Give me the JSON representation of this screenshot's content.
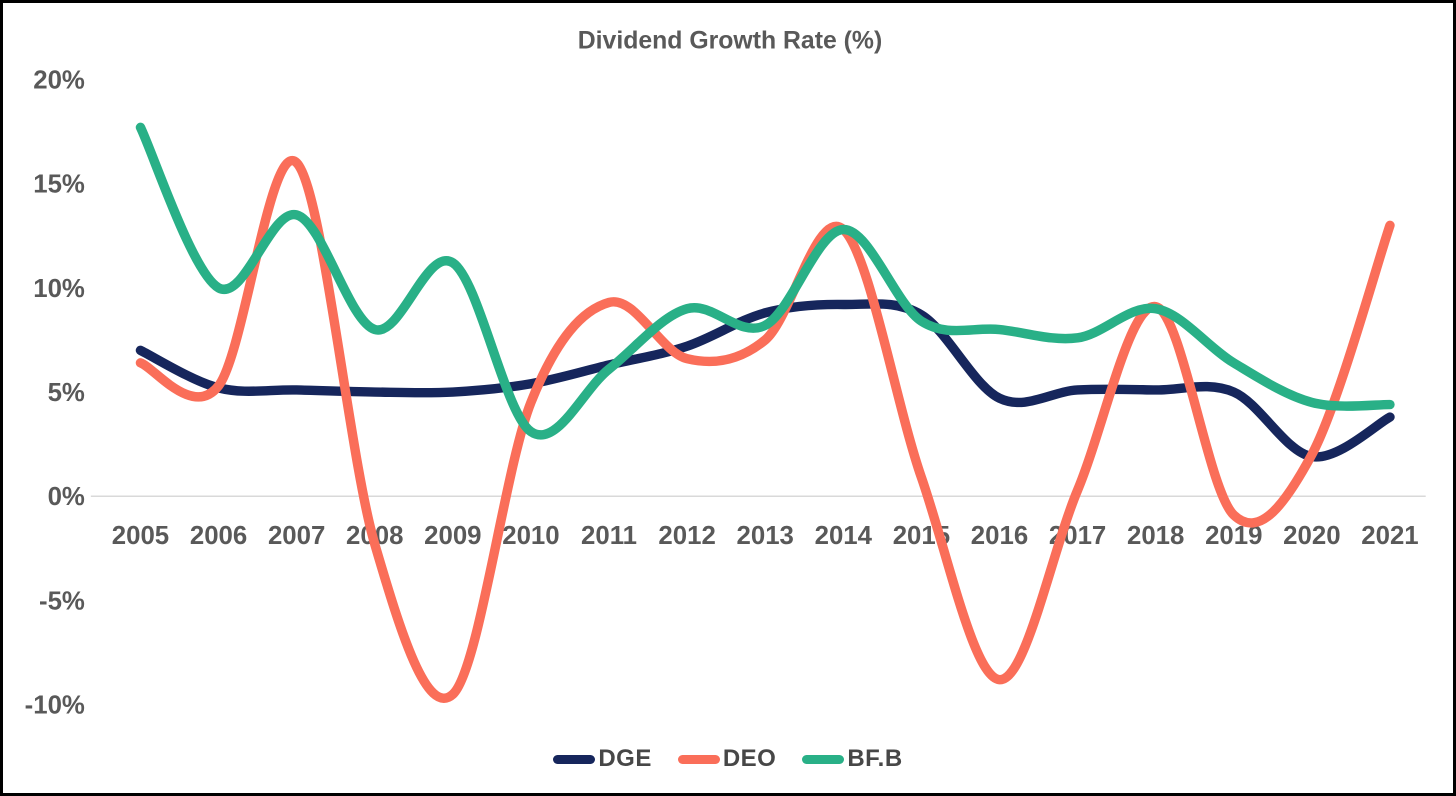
{
  "chart_data": {
    "type": "line",
    "title": "Dividend Growth Rate (%)",
    "xlabel": "",
    "ylabel": "",
    "categories": [
      "2005",
      "2006",
      "2007",
      "2008",
      "2009",
      "2010",
      "2011",
      "2012",
      "2013",
      "2014",
      "2015",
      "2016",
      "2017",
      "2018",
      "2019",
      "2020",
      "2021"
    ],
    "series": [
      {
        "name": "DGE",
        "color": "#16265C",
        "values": [
          7.0,
          5.2,
          5.1,
          5.0,
          5.0,
          5.4,
          6.3,
          7.2,
          8.8,
          9.2,
          8.7,
          4.7,
          5.1,
          5.1,
          5.0,
          1.9,
          3.8
        ]
      },
      {
        "name": "DEO",
        "color": "#FA6E59",
        "values": [
          6.4,
          5.3,
          16.0,
          -2.3,
          -9.5,
          4.5,
          9.3,
          6.6,
          7.5,
          12.8,
          0.9,
          -8.8,
          0.3,
          9.1,
          -0.9,
          2.0,
          13.0
        ]
      },
      {
        "name": "BF.B",
        "color": "#29B087",
        "values": [
          17.7,
          10.0,
          13.5,
          8.0,
          11.2,
          3.1,
          6.1,
          9.0,
          8.2,
          12.8,
          8.4,
          8.0,
          7.6,
          9.0,
          6.4,
          4.5,
          4.4
        ]
      }
    ],
    "y_ticks": [
      {
        "label": "20%",
        "value": 20
      },
      {
        "label": "15%",
        "value": 15
      },
      {
        "label": "10%",
        "value": 10
      },
      {
        "label": "5%",
        "value": 5
      },
      {
        "label": "0%",
        "value": 0
      },
      {
        "label": "-5%",
        "value": -5
      },
      {
        "label": "-10%",
        "value": -10
      }
    ],
    "ylim": [
      -10,
      20
    ],
    "grid": "zero-line-only",
    "line_style": "smooth",
    "legend_position": "bottom"
  },
  "colors": {
    "title_text": "#595959",
    "axis_text": "#595959",
    "legend_text": "#474747",
    "zero_gridline": "#D9D9D9",
    "background": "#FFFFFF",
    "border": "#000000"
  }
}
